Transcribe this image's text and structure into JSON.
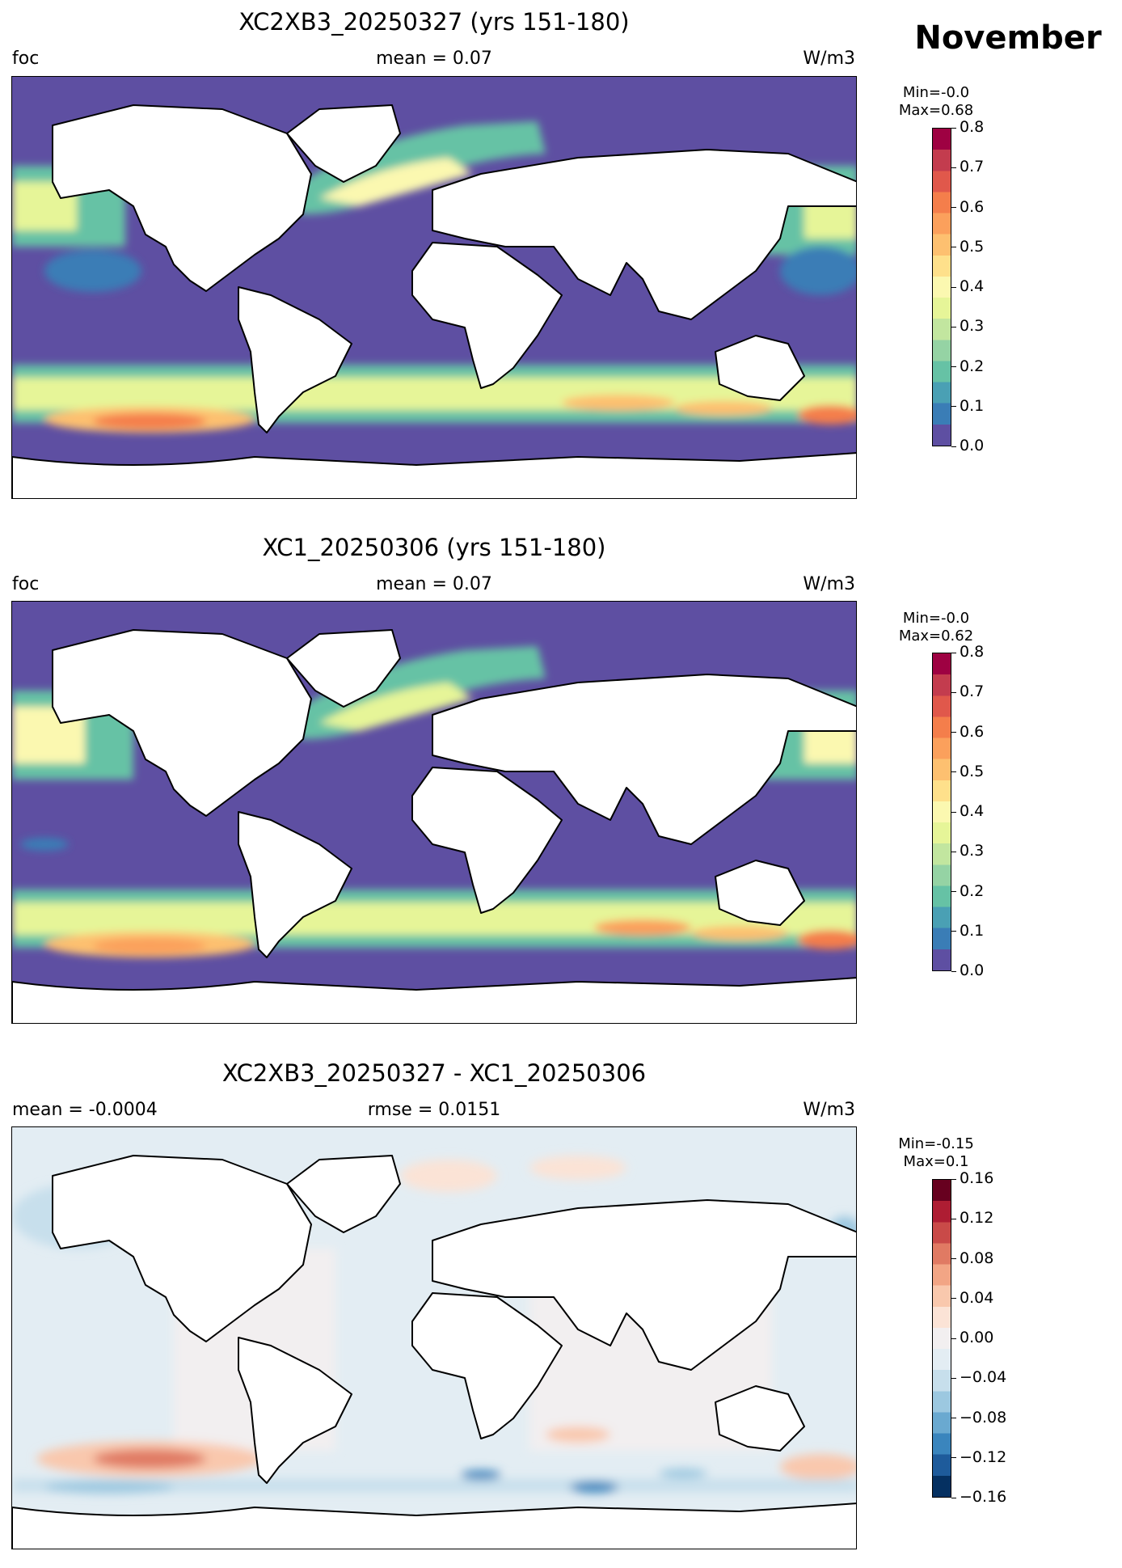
{
  "month": "November",
  "colors": {
    "spectral": [
      "#5e4fa2",
      "#3a7db6",
      "#4aa0b4",
      "#66c2a5",
      "#95d3a4",
      "#c2e69f",
      "#e6f598",
      "#fbf8b0",
      "#fee08b",
      "#fdc070",
      "#fba05c",
      "#f47e4b",
      "#e0584b",
      "#c33c4e",
      "#9e0142"
    ],
    "rdbu": [
      "#053061",
      "#1e5b9b",
      "#3a85bd",
      "#6aa9d0",
      "#9cc8e0",
      "#c7dfec",
      "#e3edf3",
      "#f2eff0",
      "#fbe3d6",
      "#f9c8ad",
      "#f2a585",
      "#e07a63",
      "#c94a48",
      "#ae1d33",
      "#67001f"
    ]
  },
  "panels": [
    {
      "title": "XC2XB3_20250327 (yrs 151-180)",
      "left_label": "foc",
      "center_label": "mean = 0.07",
      "right_label": "W/m3",
      "min_label": "Min=-0.0",
      "max_label": "Max=0.68",
      "colorbar": {
        "ticks": [
          "0.0",
          "0.1",
          "0.2",
          "0.3",
          "0.4",
          "0.5",
          "0.6",
          "0.7",
          "0.8"
        ]
      }
    },
    {
      "title": "XC1_20250306 (yrs 151-180)",
      "left_label": "foc",
      "center_label": "mean = 0.07",
      "right_label": "W/m3",
      "min_label": "Min=-0.0",
      "max_label": "Max=0.62",
      "colorbar": {
        "ticks": [
          "0.0",
          "0.1",
          "0.2",
          "0.3",
          "0.4",
          "0.5",
          "0.6",
          "0.7",
          "0.8"
        ]
      }
    },
    {
      "title": "XC2XB3_20250327 - XC1_20250306",
      "left_label": "mean = -0.0004",
      "center_label": "rmse = 0.0151",
      "right_label": "W/m3",
      "min_label": "Min=-0.15",
      "max_label": "Max=0.1",
      "colorbar": {
        "ticks": [
          "−0.16",
          "−0.12",
          "−0.08",
          "−0.04",
          "0.00",
          "0.04",
          "0.08",
          "0.12",
          "0.16"
        ]
      }
    }
  ]
}
